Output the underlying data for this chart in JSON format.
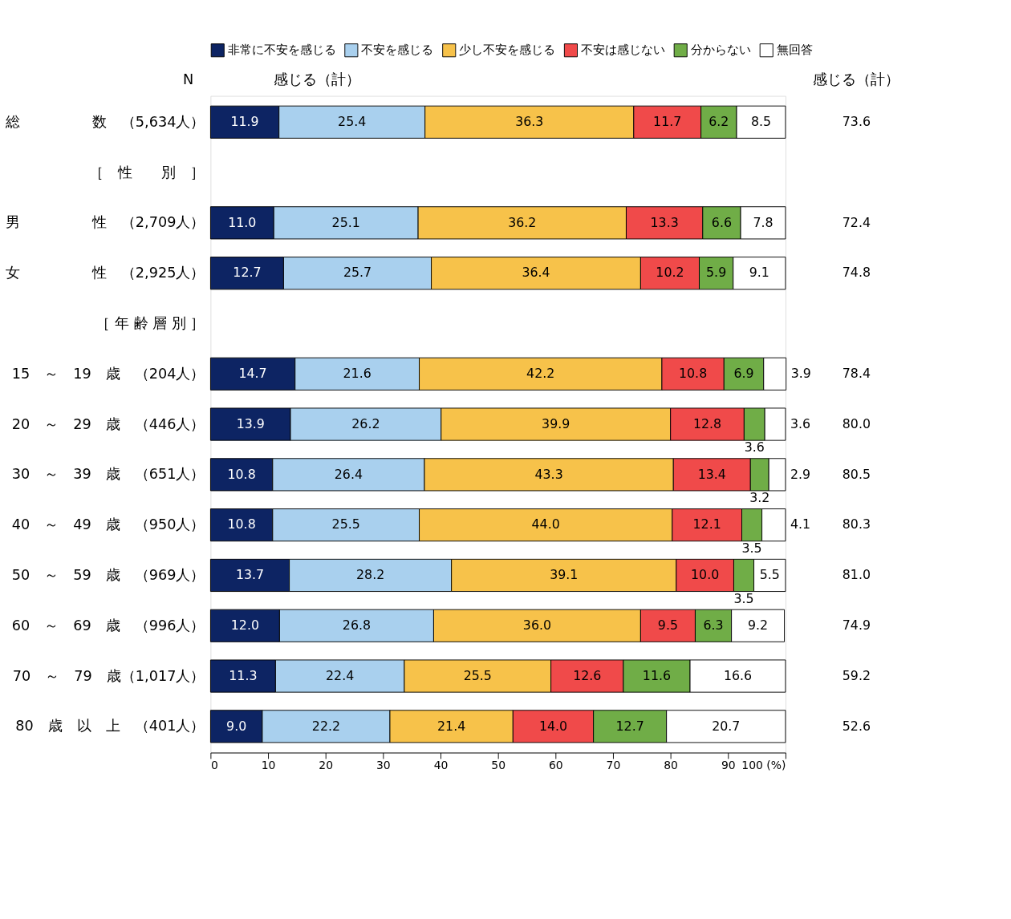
{
  "chart_data": {
    "type": "bar",
    "orientation": "horizontal",
    "stacked": true,
    "legend": "top",
    "grid": false,
    "categories": [
      "総　　　　　数　（5,634人）",
      "［　性　　別　］",
      "男　　　　　性　（2,709人）",
      "女　　　　　性　（2,925人）",
      "［ 年 齢 層 別 ］",
      "15　～　19　歳　（204人）",
      "20　～　29　歳　（446人）",
      "30　～　39　歳　（651人）",
      "40　～　49　歳　（950人）",
      "50　～　59　歳　（969人）",
      "60　～　69　歳　（996人）",
      "70　～　79　歳（1,017人）",
      "80　歳　以　上　（401人）"
    ],
    "series": [
      {
        "name": "非常に不安を感じる",
        "color": "#0d2463",
        "values": [
          11.9,
          null,
          11.0,
          12.7,
          null,
          14.7,
          13.9,
          10.8,
          10.8,
          13.7,
          12.0,
          11.3,
          9.0
        ],
        "value_labels": [
          "11.9",
          null,
          "11.0",
          "12.7",
          null,
          "14.7",
          "13.9",
          "10.8",
          "10.8",
          "13.7",
          "12.0",
          "11.3",
          "9.0"
        ]
      },
      {
        "name": "不安を感じる",
        "color": "#a9d0ee",
        "values": [
          25.4,
          null,
          25.1,
          25.7,
          null,
          21.6,
          26.2,
          26.4,
          25.5,
          28.2,
          26.8,
          22.4,
          22.2
        ],
        "value_labels": [
          "25.4",
          null,
          "25.1",
          "25.7",
          null,
          "21.6",
          "26.2",
          "26.4",
          "25.5",
          "28.2",
          "26.8",
          "22.4",
          "22.2"
        ]
      },
      {
        "name": "少し不安を感じる",
        "color": "#f7c24a",
        "values": [
          36.3,
          null,
          36.2,
          36.4,
          null,
          42.2,
          39.9,
          43.3,
          44.0,
          39.1,
          36.0,
          25.5,
          21.4
        ],
        "value_labels": [
          "36.3",
          null,
          "36.2",
          "36.4",
          null,
          "42.2",
          "39.9",
          "43.3",
          "44.0",
          "39.1",
          "36.0",
          "25.5",
          "21.4"
        ]
      },
      {
        "name": "不安は感じない",
        "color": "#f04a4a",
        "values": [
          11.7,
          null,
          13.3,
          10.2,
          null,
          10.8,
          12.8,
          13.4,
          12.1,
          10.0,
          9.5,
          12.6,
          14.0
        ],
        "value_labels": [
          "11.7",
          null,
          "13.3",
          "10.2",
          null,
          "10.8",
          "12.8",
          "13.4",
          "12.1",
          "10.0",
          "9.5",
          "12.6",
          "14.0"
        ]
      },
      {
        "name": "分からない",
        "color": "#70ad47",
        "values": [
          6.2,
          null,
          6.6,
          5.9,
          null,
          6.9,
          3.6,
          3.2,
          3.5,
          3.5,
          6.3,
          11.6,
          12.7
        ],
        "value_labels": [
          "6.2",
          null,
          "6.6",
          "5.9",
          null,
          "6.9",
          "3.6",
          "3.2",
          "3.5",
          "3.5",
          "6.3",
          "11.6",
          "12.7"
        ]
      },
      {
        "name": "無回答",
        "color": "#ffffff",
        "values": [
          8.5,
          null,
          7.8,
          9.1,
          null,
          3.9,
          3.6,
          2.9,
          4.1,
          5.5,
          9.2,
          16.6,
          20.7
        ],
        "value_labels": [
          "8.5",
          null,
          "7.8",
          "9.1",
          null,
          "3.9",
          "3.6",
          "2.9",
          "4.1",
          "5.5",
          "9.2",
          "16.6",
          "20.7"
        ]
      }
    ],
    "xlim": [
      0,
      100
    ],
    "xticks": [
      0,
      10,
      20,
      30,
      40,
      50,
      60,
      70,
      80,
      90,
      {
        "value": 100,
        "label": "100 (%)"
      }
    ],
    "annotations": [
      "N",
      "感じる（計）",
      "感じる（計）",
      "73.6",
      "72.4",
      "74.8",
      "78.4",
      "80.0",
      "80.5",
      "80.3",
      "81.0",
      "74.9",
      "59.2",
      "52.6"
    ]
  }
}
